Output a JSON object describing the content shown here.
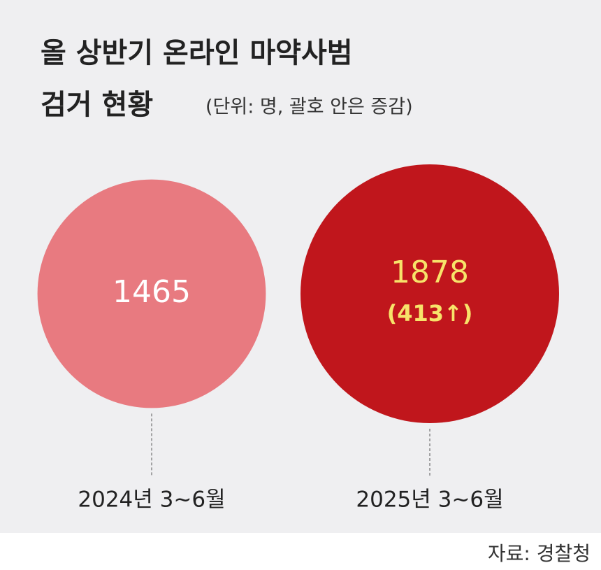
{
  "chart_data": {
    "type": "bubble",
    "title": [
      "올 상반기 온라인 마약사범",
      "검거 현황"
    ],
    "subtitle": "(단위: 명, 괄호 안은 증감)",
    "categories": [
      "2024년 3~6월",
      "2025년 3~6월"
    ],
    "values": [
      1465,
      1878
    ],
    "annotations": [
      null,
      "(413↑)"
    ],
    "colors": [
      "#e87a80",
      "#c0161c"
    ],
    "label_colors": [
      "#ffffff",
      "#f7e36a"
    ],
    "source": "자료: 경찰청"
  }
}
